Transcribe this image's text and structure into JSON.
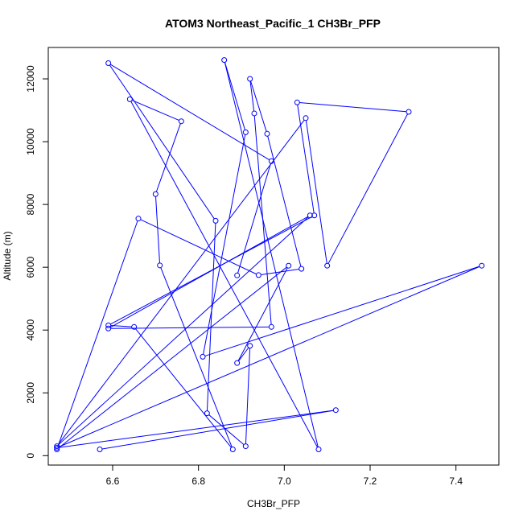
{
  "chart_data": {
    "type": "line",
    "title": "ATOM3 Northeast_Pacific_1 CH3Br_PFP",
    "xlabel": "CH3Br_PFP",
    "ylabel": "Altitude (m)",
    "xlim": [
      6.45,
      7.5
    ],
    "ylim": [
      -300,
      13000
    ],
    "x_ticks": [
      6.6,
      6.8,
      7.0,
      7.2,
      7.4
    ],
    "x_tick_labels": [
      "6.6",
      "6.8",
      "7.0",
      "7.2",
      "7.4"
    ],
    "y_ticks": [
      0,
      2000,
      4000,
      6000,
      8000,
      10000,
      12000
    ],
    "y_tick_labels": [
      "0",
      "2000",
      "4000",
      "6000",
      "8000",
      "10000",
      "12000"
    ],
    "grid": false,
    "style": {
      "line_color": "#0000ff",
      "marker": "open-circle"
    },
    "series": [
      {
        "x": [
          6.57,
          7.12,
          6.47,
          7.46,
          6.81,
          6.91,
          6.86,
          7.08,
          6.64,
          6.76,
          6.7,
          6.71,
          6.88,
          6.65,
          6.59,
          7.07,
          7.03,
          7.29,
          7.1,
          7.05,
          6.47,
          7.06,
          6.59,
          6.97,
          6.93,
          6.92,
          6.96,
          7.04,
          6.94,
          6.66,
          6.47,
          7.01,
          6.89,
          6.92,
          6.91,
          6.82,
          6.84,
          6.59,
          6.97,
          6.89
        ],
        "y": [
          200,
          1450,
          250,
          6050,
          3150,
          10300,
          12600,
          200,
          11350,
          10650,
          8330,
          6060,
          200,
          4100,
          4150,
          7650,
          11250,
          10950,
          6050,
          10750,
          300,
          7650,
          4050,
          4100,
          10900,
          12000,
          10250,
          5950,
          5750,
          7550,
          200,
          6050,
          2950,
          3500,
          300,
          1350,
          7480,
          12500,
          9380,
          5740
        ]
      }
    ]
  }
}
